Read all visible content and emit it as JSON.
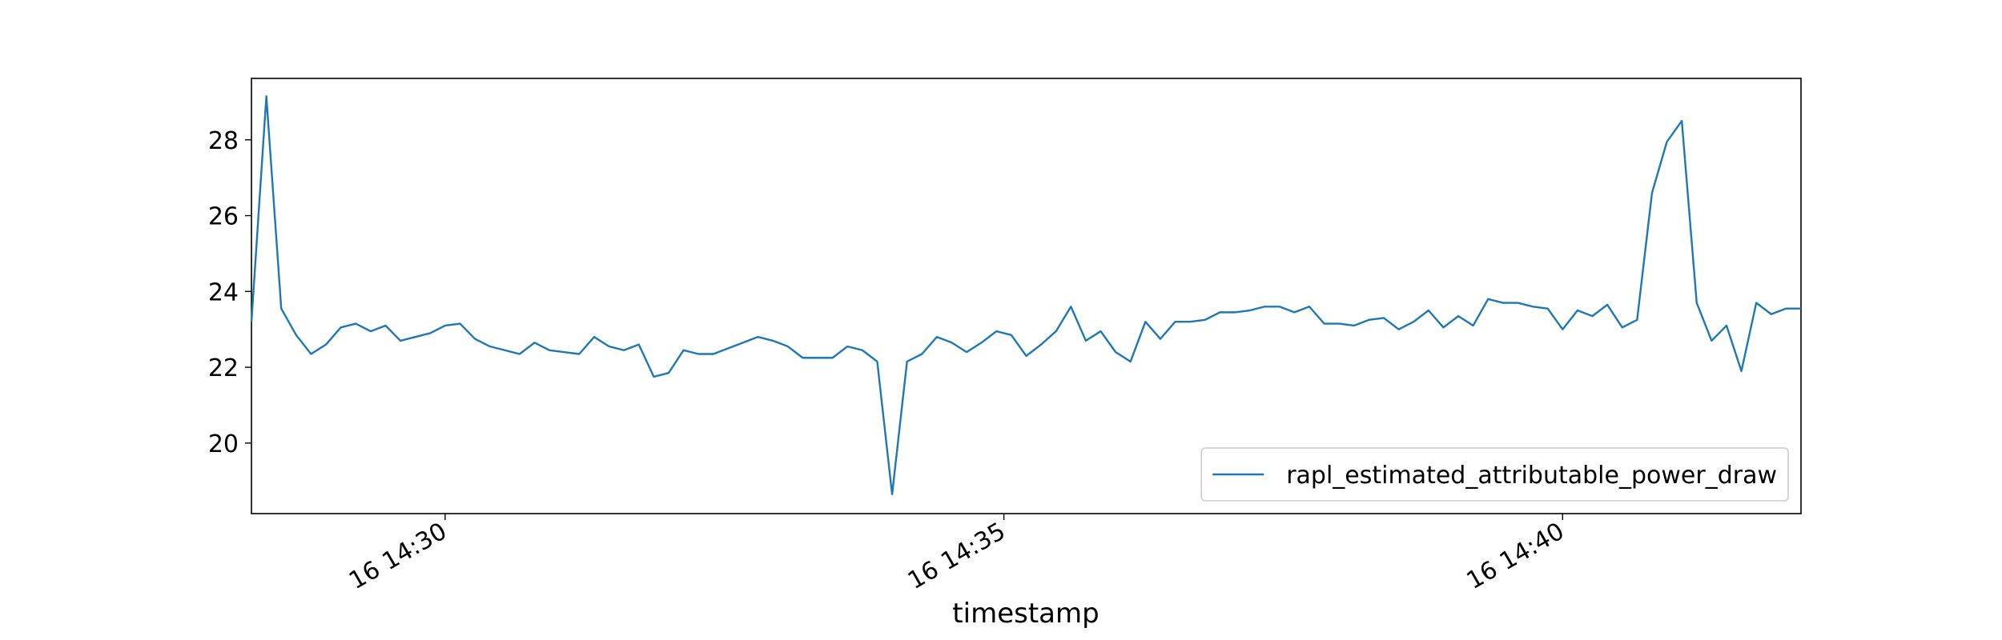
{
  "chart_data": {
    "type": "line",
    "xlabel": "timestamp",
    "x": [
      "16 14:28:16",
      "16 14:28:24",
      "16 14:28:32",
      "16 14:28:40",
      "16 14:28:48",
      "16 14:28:56",
      "16 14:29:04",
      "16 14:29:12",
      "16 14:29:20",
      "16 14:29:28",
      "16 14:29:36",
      "16 14:29:44",
      "16 14:29:52",
      "16 14:30:00",
      "16 14:30:08",
      "16 14:30:16",
      "16 14:30:24",
      "16 14:30:32",
      "16 14:30:40",
      "16 14:30:48",
      "16 14:30:56",
      "16 14:31:04",
      "16 14:31:12",
      "16 14:31:20",
      "16 14:31:28",
      "16 14:31:36",
      "16 14:31:44",
      "16 14:31:52",
      "16 14:32:00",
      "16 14:32:08",
      "16 14:32:16",
      "16 14:32:24",
      "16 14:32:32",
      "16 14:32:40",
      "16 14:32:48",
      "16 14:32:56",
      "16 14:33:04",
      "16 14:33:12",
      "16 14:33:20",
      "16 14:33:28",
      "16 14:33:36",
      "16 14:33:44",
      "16 14:33:52",
      "16 14:34:00",
      "16 14:34:08",
      "16 14:34:16",
      "16 14:34:24",
      "16 14:34:32",
      "16 14:34:40",
      "16 14:34:48",
      "16 14:34:56",
      "16 14:35:04",
      "16 14:35:12",
      "16 14:35:20",
      "16 14:35:28",
      "16 14:35:36",
      "16 14:35:44",
      "16 14:35:52",
      "16 14:36:00",
      "16 14:36:08",
      "16 14:36:16",
      "16 14:36:24",
      "16 14:36:32",
      "16 14:36:40",
      "16 14:36:48",
      "16 14:36:56",
      "16 14:37:04",
      "16 14:37:12",
      "16 14:37:20",
      "16 14:37:28",
      "16 14:37:36",
      "16 14:37:44",
      "16 14:37:52",
      "16 14:38:00",
      "16 14:38:08",
      "16 14:38:16",
      "16 14:38:24",
      "16 14:38:32",
      "16 14:38:40",
      "16 14:38:48",
      "16 14:38:56",
      "16 14:39:04",
      "16 14:39:12",
      "16 14:39:20",
      "16 14:39:28",
      "16 14:39:36",
      "16 14:39:44",
      "16 14:39:52",
      "16 14:40:00",
      "16 14:40:08",
      "16 14:40:16",
      "16 14:40:24",
      "16 14:40:32",
      "16 14:40:40",
      "16 14:40:48",
      "16 14:40:56",
      "16 14:41:04",
      "16 14:41:12",
      "16 14:41:20",
      "16 14:41:28",
      "16 14:41:36",
      "16 14:41:44",
      "16 14:41:52",
      "16 14:42:00",
      "16 14:42:08"
    ],
    "series": [
      {
        "name": "rapl_estimated_attributable_power_draw",
        "color": "#1f77b4",
        "values": [
          23.2,
          29.15,
          23.55,
          22.85,
          22.35,
          22.6,
          23.05,
          23.15,
          22.95,
          23.1,
          22.7,
          22.8,
          22.9,
          23.1,
          23.15,
          22.75,
          22.55,
          22.45,
          22.35,
          22.65,
          22.45,
          22.4,
          22.35,
          22.8,
          22.55,
          22.45,
          22.6,
          21.75,
          21.85,
          22.45,
          22.35,
          22.35,
          22.5,
          22.65,
          22.8,
          22.7,
          22.55,
          22.25,
          22.25,
          22.25,
          22.55,
          22.45,
          22.15,
          18.65,
          22.15,
          22.35,
          22.8,
          22.65,
          22.4,
          22.65,
          22.95,
          22.85,
          22.3,
          22.6,
          22.95,
          23.6,
          22.7,
          22.95,
          22.4,
          22.15,
          23.2,
          22.75,
          23.2,
          23.2,
          23.25,
          23.45,
          23.45,
          23.5,
          23.6,
          23.6,
          23.45,
          23.6,
          23.15,
          23.15,
          23.1,
          23.25,
          23.3,
          23.0,
          23.2,
          23.5,
          23.05,
          23.35,
          23.1,
          23.8,
          23.7,
          23.7,
          23.6,
          23.55,
          23.0,
          23.5,
          23.35,
          23.65,
          23.05,
          23.25,
          26.6,
          27.95,
          28.5,
          23.7,
          22.7,
          23.1,
          21.9,
          23.7,
          23.4,
          23.55,
          23.55
        ]
      }
    ],
    "xlim": [
      "16 14:28:16",
      "16 14:42:08"
    ],
    "ylim": [
      18.14,
      29.62
    ],
    "xticks": [
      "16 14:30",
      "16 14:35",
      "16 14:40"
    ],
    "yticks": [
      20,
      22,
      24,
      26,
      28
    ],
    "legend": "lower right"
  }
}
